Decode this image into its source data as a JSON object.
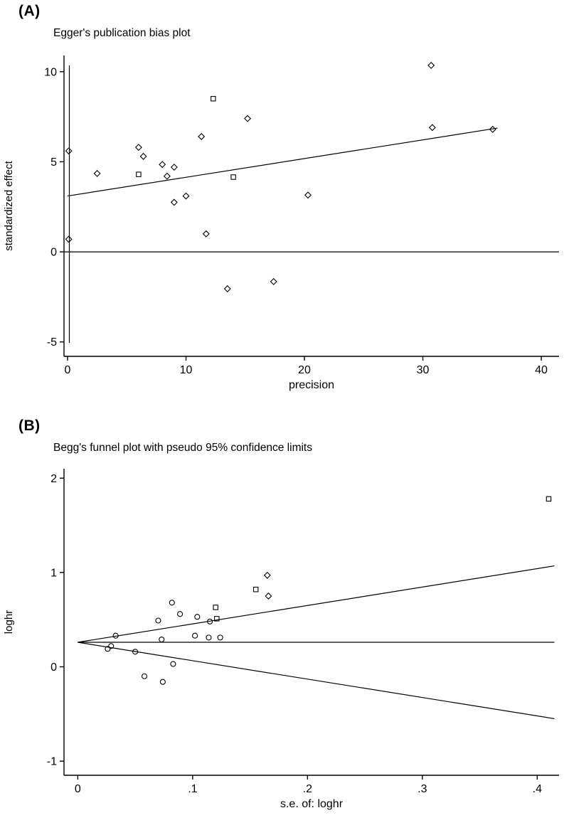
{
  "page": {
    "background": "#ffffff",
    "ink": "#000000"
  },
  "panels": [
    {
      "label": "(A)"
    },
    {
      "label": "(B)"
    }
  ],
  "chart_data": [
    {
      "id": "egger-publication-bias-plot",
      "type": "scatter",
      "title": "Egger's publication bias plot",
      "xlabel": "precision",
      "ylabel": "standardized effect",
      "xlim": [
        -0.3,
        41.5
      ],
      "ylim": [
        -5.8,
        10.9
      ],
      "xticks": [
        0,
        10,
        20,
        30,
        40
      ],
      "xtick_labels": [
        "0",
        "10",
        "20",
        "30",
        "40"
      ],
      "yticks": [
        -5,
        0,
        5,
        10
      ],
      "ytick_labels": [
        "-5",
        "0",
        "5",
        "10"
      ],
      "grid": false,
      "legend": "none",
      "marker_default": "diamond",
      "marker_color": "#000000",
      "points": [
        {
          "x": 0.1,
          "y": 5.6
        },
        {
          "x": 0.1,
          "y": 0.7
        },
        {
          "x": 2.5,
          "y": 4.35
        },
        {
          "x": 6.0,
          "y": 5.8
        },
        {
          "x": 6.4,
          "y": 5.3
        },
        {
          "x": 6.0,
          "y": 4.3,
          "marker": "square"
        },
        {
          "x": 8.0,
          "y": 4.85
        },
        {
          "x": 8.4,
          "y": 4.2
        },
        {
          "x": 9.0,
          "y": 4.7
        },
        {
          "x": 9.0,
          "y": 2.75
        },
        {
          "x": 10.0,
          "y": 3.1
        },
        {
          "x": 11.3,
          "y": 6.4
        },
        {
          "x": 12.3,
          "y": 8.5,
          "marker": "square"
        },
        {
          "x": 11.7,
          "y": 1.0
        },
        {
          "x": 13.5,
          "y": -2.05
        },
        {
          "x": 14.0,
          "y": 4.15,
          "marker": "square"
        },
        {
          "x": 15.2,
          "y": 7.4
        },
        {
          "x": 17.4,
          "y": -1.65
        },
        {
          "x": 20.3,
          "y": 3.15
        },
        {
          "x": 30.7,
          "y": 10.35
        },
        {
          "x": 30.8,
          "y": 6.9
        },
        {
          "x": 35.9,
          "y": 6.8
        }
      ],
      "lines": [
        {
          "name": "regression-line",
          "x1": 0.0,
          "y1": 3.1,
          "x2": 36.3,
          "y2": 6.87
        },
        {
          "name": "zero-reference-line",
          "x1": -0.3,
          "y1": 0.0,
          "x2": 41.5,
          "y2": 0.0
        },
        {
          "name": "vertical-range-line",
          "x1": 0.15,
          "y1": -5.05,
          "x2": 0.15,
          "y2": 10.35
        }
      ]
    },
    {
      "id": "begg-funnel-plot",
      "type": "scatter",
      "title": "Begg's funnel plot with pseudo 95% confidence limits",
      "xlabel": "s.e. of: loghr",
      "ylabel": "loghr",
      "xlim": [
        -0.012,
        0.419
      ],
      "ylim": [
        -1.15,
        2.1
      ],
      "xticks": [
        0,
        0.1,
        0.2,
        0.3,
        0.4
      ],
      "xtick_labels": [
        "0",
        ".1",
        ".2",
        ".3",
        ".4"
      ],
      "yticks": [
        -1,
        0,
        1,
        2
      ],
      "ytick_labels": [
        "-1",
        "0",
        "1",
        "2"
      ],
      "grid": false,
      "legend": "none",
      "marker_default": "circle",
      "marker_color": "#000000",
      "points": [
        {
          "x": 0.41,
          "y": 1.78,
          "marker": "square"
        },
        {
          "x": 0.165,
          "y": 0.97,
          "marker": "diamond"
        },
        {
          "x": 0.155,
          "y": 0.82,
          "marker": "square"
        },
        {
          "x": 0.166,
          "y": 0.75,
          "marker": "diamond"
        },
        {
          "x": 0.082,
          "y": 0.68
        },
        {
          "x": 0.12,
          "y": 0.63,
          "marker": "square"
        },
        {
          "x": 0.089,
          "y": 0.56
        },
        {
          "x": 0.104,
          "y": 0.53
        },
        {
          "x": 0.121,
          "y": 0.51,
          "marker": "square"
        },
        {
          "x": 0.115,
          "y": 0.48
        },
        {
          "x": 0.07,
          "y": 0.49
        },
        {
          "x": 0.033,
          "y": 0.33
        },
        {
          "x": 0.102,
          "y": 0.33
        },
        {
          "x": 0.114,
          "y": 0.31
        },
        {
          "x": 0.124,
          "y": 0.31
        },
        {
          "x": 0.073,
          "y": 0.29
        },
        {
          "x": 0.029,
          "y": 0.22
        },
        {
          "x": 0.026,
          "y": 0.19
        },
        {
          "x": 0.05,
          "y": 0.16
        },
        {
          "x": 0.083,
          "y": 0.03
        },
        {
          "x": 0.058,
          "y": -0.1
        },
        {
          "x": 0.074,
          "y": -0.16
        }
      ],
      "lines": [
        {
          "name": "pooled-estimate-line",
          "x1": 0.0,
          "y1": 0.26,
          "x2": 0.415,
          "y2": 0.26
        },
        {
          "name": "upper-confidence-limit",
          "x1": 0.0,
          "y1": 0.26,
          "x2": 0.415,
          "y2": 1.07
        },
        {
          "name": "lower-confidence-limit",
          "x1": 0.0,
          "y1": 0.26,
          "x2": 0.415,
          "y2": -0.55
        }
      ]
    }
  ]
}
